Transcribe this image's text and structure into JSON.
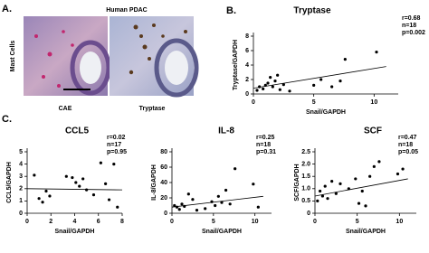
{
  "panel_a": {
    "label": "A.",
    "title": "Human PDAC",
    "row_label": "Mast Cells",
    "images": [
      {
        "caption": "CAE"
      },
      {
        "caption": "Tryptase"
      }
    ]
  },
  "panel_b_label": "B.",
  "panel_c_label": "C.",
  "chart_data": [
    {
      "type": "scatter",
      "title": "Tryptase",
      "x_label": "Snail/GAPDH",
      "y_label": "Tryptase/GAPDH",
      "stats": [
        "r=0.68",
        "n=18",
        "p=0.002"
      ],
      "x": [
        0.3,
        0.5,
        0.8,
        1.0,
        1.2,
        1.4,
        1.6,
        1.8,
        2.0,
        2.2,
        2.5,
        3.0,
        5.0,
        5.6,
        6.5,
        7.2,
        7.6,
        10.2
      ],
      "y": [
        0.5,
        1.0,
        0.7,
        1.2,
        1.5,
        2.3,
        1.0,
        1.8,
        2.6,
        0.6,
        1.3,
        0.4,
        1.2,
        2.0,
        1.0,
        1.8,
        4.8,
        5.8
      ],
      "fit": {
        "x": [
          0,
          11
        ],
        "y": [
          0.8,
          3.8
        ]
      },
      "xlim": [
        0,
        12
      ],
      "xticks": [
        0,
        5,
        10
      ],
      "ylim": [
        0,
        8
      ],
      "yticks": [
        0,
        2,
        4,
        6,
        8
      ],
      "color": "#000000"
    },
    {
      "type": "scatter",
      "title": "CCL5",
      "x_label": "Snail/GAPDH",
      "y_label": "CCL5/GAPDH",
      "stats": [
        "r=0.02",
        "n=17",
        "p=0.95"
      ],
      "x": [
        0.6,
        1.0,
        1.3,
        1.6,
        1.9,
        3.3,
        3.8,
        4.1,
        4.4,
        4.7,
        5.0,
        5.6,
        6.2,
        6.6,
        6.9,
        7.3,
        7.6
      ],
      "y": [
        3.1,
        1.2,
        0.9,
        1.8,
        1.4,
        3.0,
        2.9,
        2.5,
        2.2,
        2.8,
        1.9,
        1.5,
        4.1,
        2.4,
        1.1,
        4.0,
        0.5
      ],
      "fit": {
        "x": [
          0,
          8
        ],
        "y": [
          2.0,
          1.9
        ]
      },
      "xlim": [
        0,
        8
      ],
      "xticks": [
        0,
        2,
        4,
        6,
        8
      ],
      "ylim": [
        0,
        5
      ],
      "yticks": [
        0,
        1,
        2,
        3,
        4,
        5
      ],
      "color": "#000000"
    },
    {
      "type": "scatter",
      "title": "IL-8",
      "x_label": "Snail/GAPDH",
      "y_label": "IL-8/GAPDH",
      "stats": [
        "r=0.25",
        "n=18",
        "p=0.31"
      ],
      "x": [
        0.3,
        0.6,
        0.9,
        1.2,
        1.5,
        2.0,
        2.5,
        3.0,
        4.0,
        4.8,
        5.2,
        5.6,
        6.0,
        6.5,
        7.0,
        7.6,
        9.8,
        10.4
      ],
      "y": [
        10,
        8,
        5,
        12,
        9,
        25,
        18,
        4,
        6,
        15,
        10,
        22,
        14,
        30,
        12,
        58,
        38,
        8
      ],
      "fit": {
        "x": [
          0,
          11
        ],
        "y": [
          8,
          22
        ]
      },
      "xlim": [
        0,
        12
      ],
      "xticks": [
        0,
        5,
        10
      ],
      "ylim": [
        0,
        80
      ],
      "yticks": [
        0,
        20,
        40,
        60,
        80
      ],
      "color": "#000000"
    },
    {
      "type": "scatter",
      "title": "SCF",
      "x_label": "Snail/GAPDH",
      "y_label": "SCF/GAPDH",
      "stats": [
        "r=0.47",
        "n=18",
        "p=0.05"
      ],
      "x": [
        0.3,
        0.6,
        0.9,
        1.2,
        1.5,
        2.0,
        2.5,
        3.0,
        4.0,
        4.8,
        5.2,
        5.6,
        6.0,
        6.5,
        7.0,
        7.6,
        9.8,
        10.4
      ],
      "y": [
        0.5,
        0.9,
        0.7,
        1.1,
        0.6,
        1.3,
        0.8,
        1.2,
        1.0,
        1.4,
        0.4,
        0.9,
        0.3,
        1.5,
        1.9,
        2.1,
        1.6,
        1.8
      ],
      "fit": {
        "x": [
          0,
          11
        ],
        "y": [
          0.7,
          1.4
        ]
      },
      "xlim": [
        0,
        12
      ],
      "xticks": [
        0,
        5,
        10
      ],
      "ylim": [
        0,
        2.5
      ],
      "yticks": [
        0,
        0.5,
        {
          "value": 1,
          "label": "1.0"
        },
        1.5,
        {
          "value": 2,
          "label": "2.0"
        },
        2.5
      ],
      "color": "#000000"
    }
  ]
}
